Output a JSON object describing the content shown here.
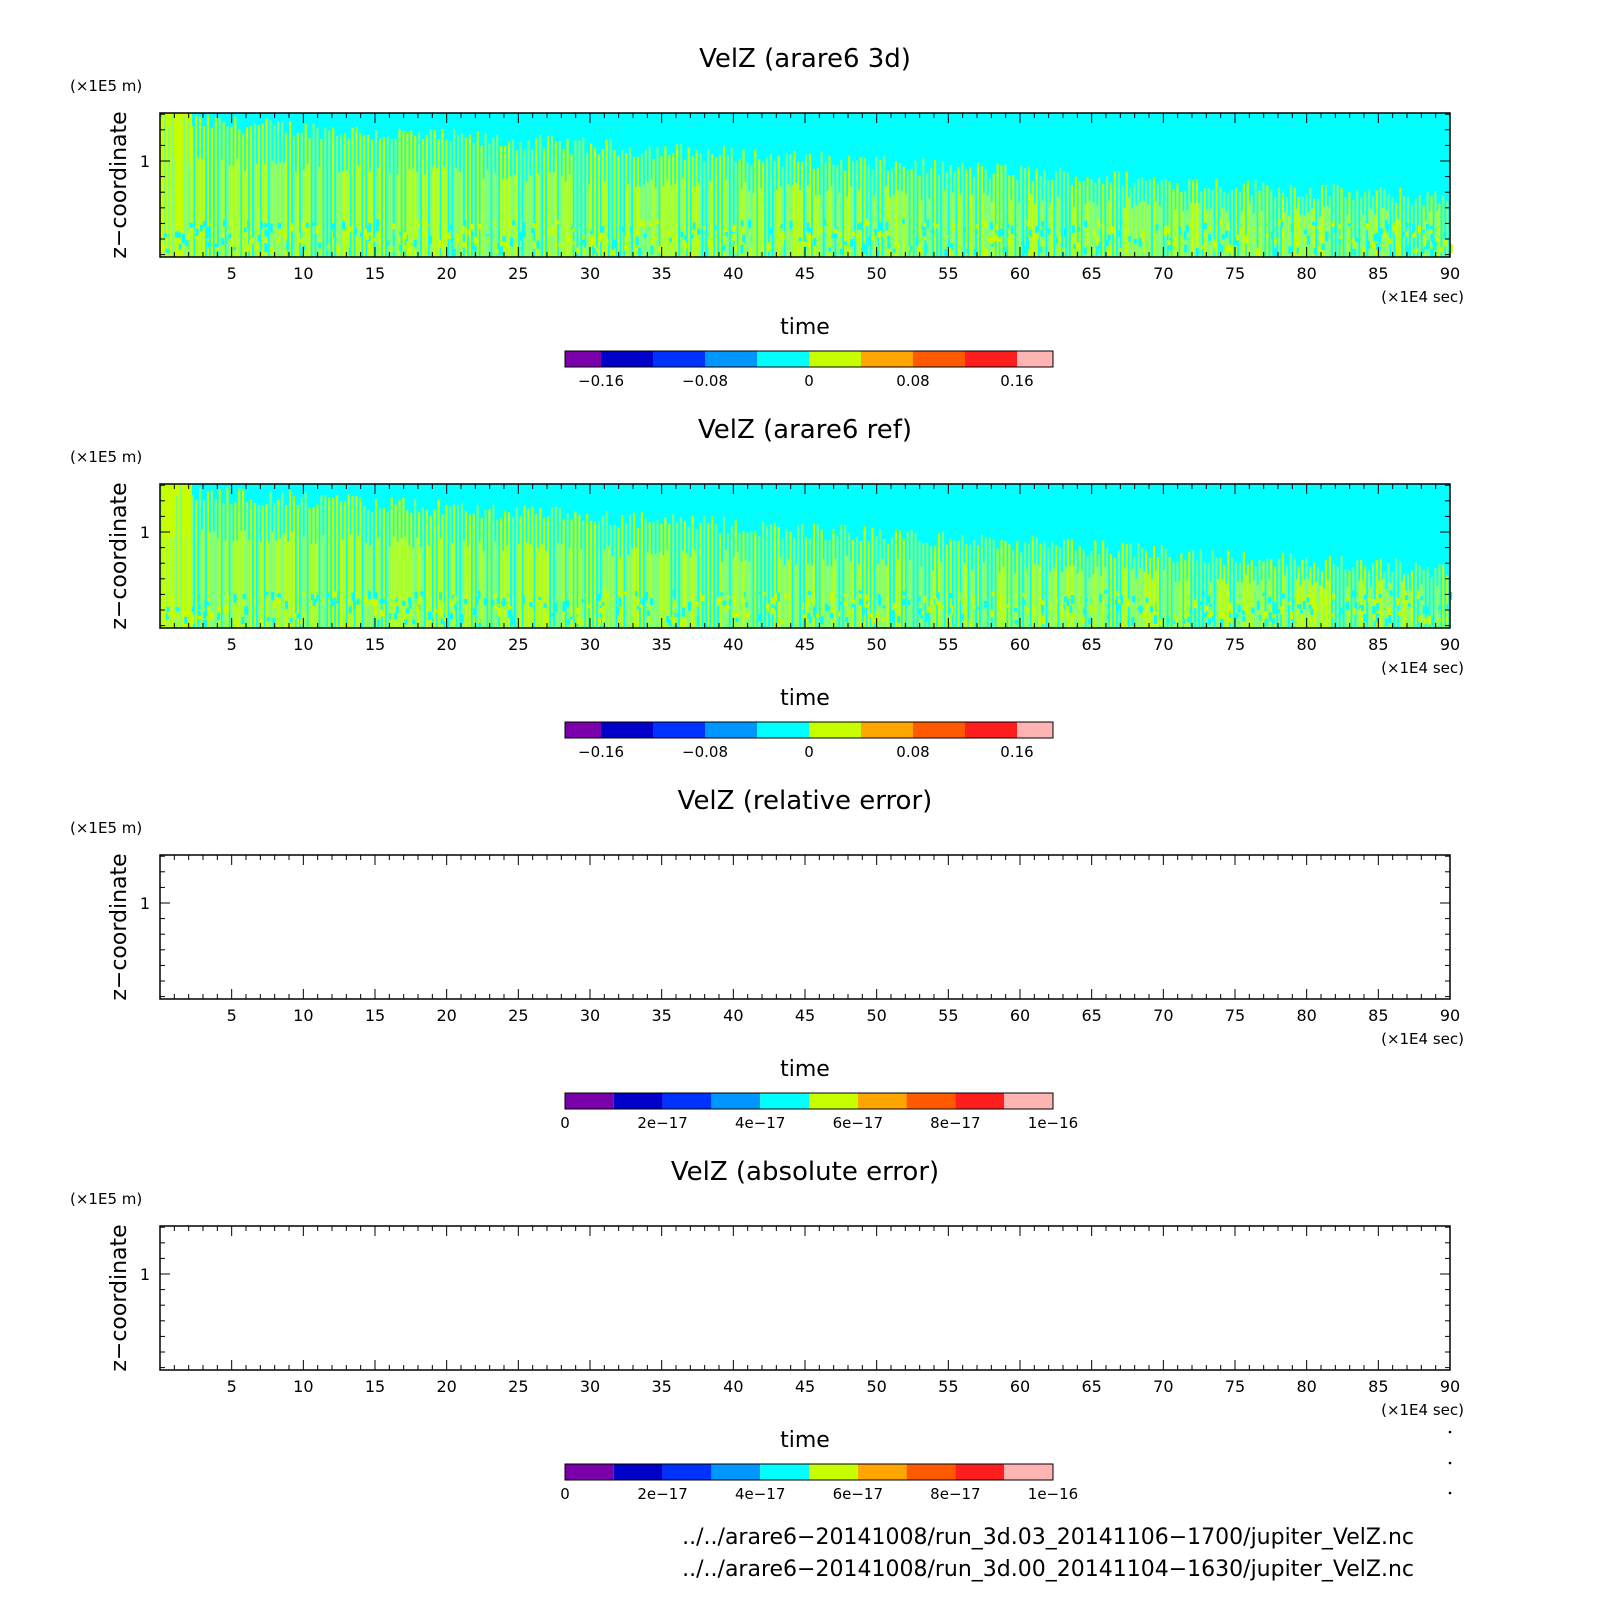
{
  "chart_data": [
    {
      "type": "heatmap",
      "title": "VelZ (arare6 3d)",
      "xlabel": "time",
      "x_unit": "(×1E4 sec)",
      "ylabel": "z−coordinate",
      "y_unit": "(×1E5 m)",
      "xlim": [
        0,
        90
      ],
      "xticks": [
        "5",
        "10",
        "15",
        "20",
        "25",
        "30",
        "35",
        "40",
        "45",
        "50",
        "55",
        "60",
        "65",
        "70",
        "75",
        "80",
        "85",
        "90"
      ],
      "yticks": [
        "1"
      ],
      "field": "velz",
      "colorbar": {
        "colors": [
          "#7a00aa",
          "#0000c8",
          "#0032ff",
          "#0096ff",
          "#00ffff",
          "#c8ff00",
          "#ffa500",
          "#ff5a00",
          "#ff1e1e",
          "#ffb4b4"
        ],
        "labels": [
          "−0.16",
          "−0.08",
          "0",
          "0.08",
          "0.16"
        ],
        "min": -0.2,
        "max": 0.2
      }
    },
    {
      "type": "heatmap",
      "title": "VelZ (arare6 ref)",
      "xlabel": "time",
      "x_unit": "(×1E4 sec)",
      "ylabel": "z−coordinate",
      "y_unit": "(×1E5 m)",
      "xlim": [
        0,
        90
      ],
      "xticks": [
        "5",
        "10",
        "15",
        "20",
        "25",
        "30",
        "35",
        "40",
        "45",
        "50",
        "55",
        "60",
        "65",
        "70",
        "75",
        "80",
        "85",
        "90"
      ],
      "yticks": [
        "1"
      ],
      "field": "velz",
      "colorbar": {
        "colors": [
          "#7a00aa",
          "#0000c8",
          "#0032ff",
          "#0096ff",
          "#00ffff",
          "#c8ff00",
          "#ffa500",
          "#ff5a00",
          "#ff1e1e",
          "#ffb4b4"
        ],
        "labels": [
          "−0.16",
          "−0.08",
          "0",
          "0.08",
          "0.16"
        ],
        "min": -0.2,
        "max": 0.2
      }
    },
    {
      "type": "heatmap",
      "title": "VelZ (relative error)",
      "xlabel": "time",
      "x_unit": "(×1E4 sec)",
      "ylabel": "z−coordinate",
      "y_unit": "(×1E5 m)",
      "xlim": [
        0,
        90
      ],
      "xticks": [
        "5",
        "10",
        "15",
        "20",
        "25",
        "30",
        "35",
        "40",
        "45",
        "50",
        "55",
        "60",
        "65",
        "70",
        "75",
        "80",
        "85",
        "90"
      ],
      "yticks": [
        "1"
      ],
      "field": "empty",
      "colorbar": {
        "colors": [
          "#7a00aa",
          "#0000c8",
          "#0032ff",
          "#0096ff",
          "#00ffff",
          "#c8ff00",
          "#ffa500",
          "#ff5a00",
          "#ff1e1e",
          "#ffb4b4"
        ],
        "labels": [
          "0",
          "2e−17",
          "4e−17",
          "6e−17",
          "8e−17",
          "1e−16"
        ],
        "min": 0,
        "max": 1e-16
      }
    },
    {
      "type": "heatmap",
      "title": "VelZ (absolute error)",
      "xlabel": "time",
      "x_unit": "(×1E4 sec)",
      "ylabel": "z−coordinate",
      "y_unit": "(×1E5 m)",
      "xlim": [
        0,
        90
      ],
      "xticks": [
        "5",
        "10",
        "15",
        "20",
        "25",
        "30",
        "35",
        "40",
        "45",
        "50",
        "55",
        "60",
        "65",
        "70",
        "75",
        "80",
        "85",
        "90"
      ],
      "yticks": [
        "1"
      ],
      "field": "empty",
      "colorbar": {
        "colors": [
          "#7a00aa",
          "#0000c8",
          "#0032ff",
          "#0096ff",
          "#00ffff",
          "#c8ff00",
          "#ffa500",
          "#ff5a00",
          "#ff1e1e",
          "#ffb4b4"
        ],
        "labels": [
          "0",
          "2e−17",
          "4e−17",
          "6e−17",
          "8e−17",
          "1e−16"
        ],
        "min": 0,
        "max": 1e-16
      }
    }
  ],
  "footer": {
    "file1": "../../arare6−20141008/run_3d.03_20141106−1700/jupiter_VelZ.nc",
    "file2": "../../arare6−20141008/run_3d.00_20141104−1630/jupiter_VelZ.nc"
  }
}
